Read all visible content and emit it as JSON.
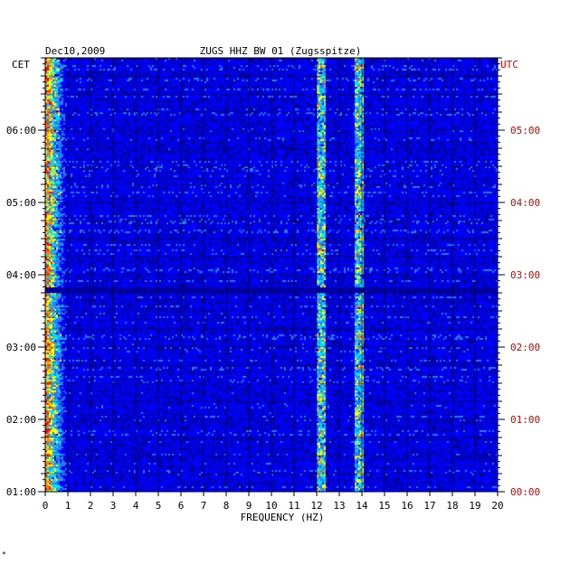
{
  "header": {
    "date": "Dec10,2009",
    "station": "ZUGS HHZ BW 01 (Zugsspitze)"
  },
  "chart_data": {
    "type": "heatmap",
    "title": "ZUGS HHZ BW 01 (Zugsspitze)",
    "date": "Dec10,2009",
    "xlabel": "FREQUENCY (HZ)",
    "xlim": [
      0,
      20
    ],
    "x_ticks": [
      "0",
      "1",
      "2",
      "3",
      "4",
      "5",
      "6",
      "7",
      "8",
      "9",
      "10",
      "11",
      "12",
      "13",
      "14",
      "15",
      "16",
      "17",
      "18",
      "19",
      "20"
    ],
    "left_axis": {
      "label": "CET",
      "ticks": [
        "06:00",
        "05:00",
        "04:00",
        "03:00",
        "02:00",
        "01:00"
      ],
      "ylim": [
        "01:00",
        "07:00"
      ]
    },
    "right_axis": {
      "label": "UTC",
      "ticks": [
        "05:00",
        "04:00",
        "03:00",
        "02:00",
        "01:00",
        "00:00"
      ],
      "ylim": [
        "00:00",
        "06:00"
      ]
    },
    "colormap": [
      "#0000a0",
      "#0000ff",
      "#2a78ff",
      "#00e0ff",
      "#ffff00",
      "#ff8000",
      "#ff0000"
    ],
    "features": {
      "low_frequency_band_hz": [
        0,
        1
      ],
      "persistent_lines_hz": [
        12.2,
        13.9
      ],
      "data_gap_cet": [
        "03:45",
        "03:50"
      ]
    }
  },
  "footer": {
    "mark": "*"
  },
  "colors": {
    "cet_axis": "#000000",
    "utc_axis": "#d00000",
    "background": "#ffffff"
  }
}
